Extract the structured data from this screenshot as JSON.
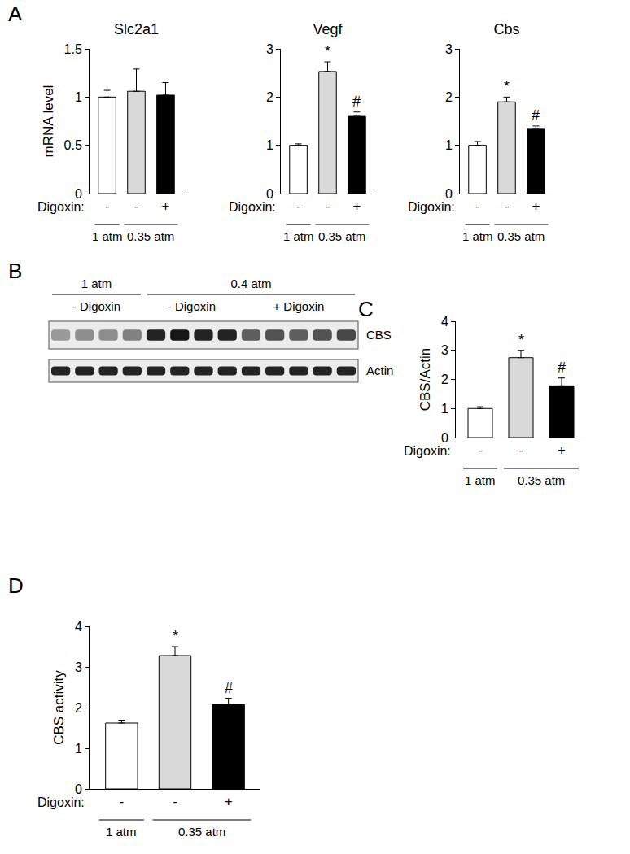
{
  "panel_labels": [
    "A",
    "B",
    "C",
    "D"
  ],
  "chart_data": [
    {
      "type": "bar",
      "title": "Slc2a1",
      "ylabel": "mRNA level",
      "xlabel": "Digoxin:",
      "categories": [
        "-",
        "-",
        "+"
      ],
      "values": [
        1.0,
        1.06,
        1.02
      ],
      "errors": [
        0.07,
        0.23,
        0.13
      ],
      "colors": [
        "#ffffff",
        "#d9d9d9",
        "#000000"
      ],
      "groups": [
        {
          "label": "1 atm",
          "size": 1
        },
        {
          "label": "0.35 atm",
          "size": 2
        }
      ],
      "ylim": [
        0,
        1.5
      ],
      "yticks": [
        0,
        0.5,
        1,
        1.5
      ],
      "grid": false
    },
    {
      "type": "bar",
      "title": "Vegf",
      "categories": [
        "-",
        "-",
        "+"
      ],
      "values": [
        1.0,
        2.53,
        1.6
      ],
      "errors": [
        0.03,
        0.2,
        0.09
      ],
      "colors": [
        "#ffffff",
        "#d9d9d9",
        "#000000"
      ],
      "xlabel": "Digoxin:",
      "groups": [
        {
          "label": "1 atm",
          "size": 1
        },
        {
          "label": "0.35 atm",
          "size": 2
        }
      ],
      "annotations": [
        {
          "x": 1,
          "text": "*"
        },
        {
          "x": 2,
          "text": "#"
        }
      ],
      "ylim": [
        0,
        3
      ],
      "yticks": [
        0,
        1,
        2,
        3
      ],
      "grid": false
    },
    {
      "type": "bar",
      "title": "Cbs",
      "categories": [
        "-",
        "-",
        "+"
      ],
      "values": [
        1.0,
        1.9,
        1.35
      ],
      "errors": [
        0.08,
        0.1,
        0.05
      ],
      "colors": [
        "#ffffff",
        "#d9d9d9",
        "#000000"
      ],
      "xlabel": "Digoxin:",
      "groups": [
        {
          "label": "1 atm",
          "size": 1
        },
        {
          "label": "0.35 atm",
          "size": 2
        }
      ],
      "annotations": [
        {
          "x": 1,
          "text": "*"
        },
        {
          "x": 2,
          "text": "#"
        }
      ],
      "ylim": [
        0,
        3
      ],
      "yticks": [
        0,
        1,
        2,
        3
      ],
      "grid": false
    },
    {
      "type": "bar",
      "ylabel": "CBS/Actin",
      "xlabel": "Digoxin:",
      "categories": [
        "-",
        "-",
        "+"
      ],
      "values": [
        1.0,
        2.75,
        1.78
      ],
      "errors": [
        0.06,
        0.25,
        0.27
      ],
      "colors": [
        "#ffffff",
        "#d9d9d9",
        "#000000"
      ],
      "groups": [
        {
          "label": "1 atm",
          "size": 1
        },
        {
          "label": "0.35 atm",
          "size": 2
        }
      ],
      "annotations": [
        {
          "x": 1,
          "text": "*"
        },
        {
          "x": 2,
          "text": "#"
        }
      ],
      "ylim": [
        0,
        4
      ],
      "yticks": [
        0,
        1,
        2,
        3,
        4
      ],
      "grid": false
    },
    {
      "type": "bar",
      "ylabel": "CBS activity",
      "xlabel": "Digoxin:",
      "categories": [
        "-",
        "-",
        "+"
      ],
      "values": [
        1.62,
        3.28,
        2.08
      ],
      "errors": [
        0.07,
        0.22,
        0.15
      ],
      "colors": [
        "#ffffff",
        "#d9d9d9",
        "#000000"
      ],
      "groups": [
        {
          "label": "1 atm",
          "size": 1
        },
        {
          "label": "0.35 atm",
          "size": 2
        }
      ],
      "annotations": [
        {
          "x": 1,
          "text": "*"
        },
        {
          "x": 2,
          "text": "#"
        }
      ],
      "ylim": [
        0,
        4
      ],
      "yticks": [
        0,
        1,
        2,
        3,
        4
      ],
      "grid": false
    }
  ],
  "blot": {
    "pressure_groups": [
      {
        "label": "1 atm",
        "conditions": 1
      },
      {
        "label": "0.4 atm",
        "conditions": 2
      }
    ],
    "conditions": [
      {
        "label": "- Digoxin",
        "lanes": 4
      },
      {
        "label": "- Digoxin",
        "lanes": 4
      },
      {
        "label": "+ Digoxin",
        "lanes": 5
      }
    ],
    "rows": [
      {
        "label": "CBS",
        "intensity": [
          0.35,
          0.4,
          0.4,
          0.45,
          0.85,
          0.9,
          0.85,
          0.85,
          0.6,
          0.65,
          0.6,
          0.65,
          0.7
        ]
      },
      {
        "label": "Actin",
        "intensity": [
          0.85,
          0.85,
          0.85,
          0.85,
          0.85,
          0.85,
          0.85,
          0.85,
          0.85,
          0.85,
          0.85,
          0.85,
          0.85
        ]
      }
    ]
  }
}
